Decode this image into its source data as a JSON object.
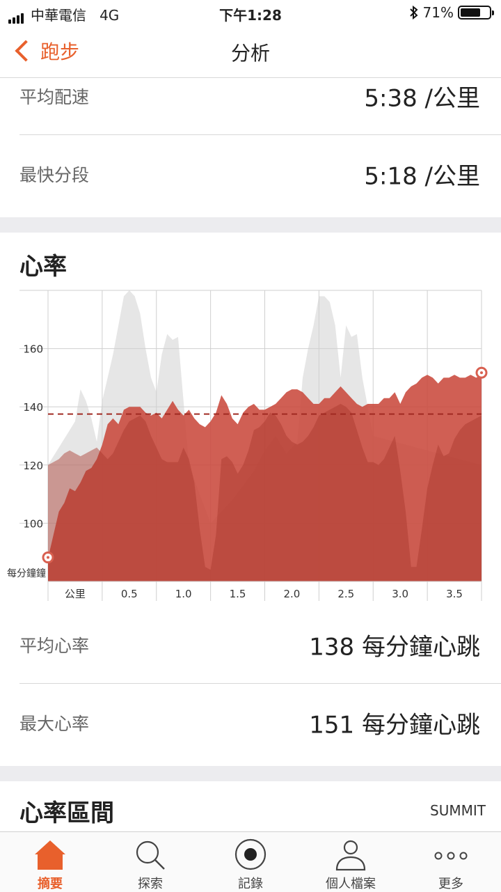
{
  "status_bar": {
    "carrier": "中華電信",
    "network": "4G",
    "time": "下午1:28",
    "battery_percent": "71%",
    "battery_level": 0.71
  },
  "nav": {
    "back_label": "跑步",
    "title": "分析"
  },
  "pace": {
    "rows": [
      {
        "label": "平均配速",
        "value": "5:38 /公里"
      },
      {
        "label": "最快分段",
        "value": "5:18 /公里"
      }
    ]
  },
  "heart_rate": {
    "title": "心率",
    "rows": [
      {
        "label": "平均心率",
        "value": "138 每分鐘心跳"
      },
      {
        "label": "最大心率",
        "value": "151 每分鐘心跳"
      }
    ]
  },
  "chart_data": {
    "type": "area",
    "x_unit_label": "公里",
    "pace_axis_label": "每分鐘",
    "x_ticks": [
      "0.5",
      "1.0",
      "1.5",
      "2.0",
      "2.5",
      "3.0",
      "3.5"
    ],
    "y_ticks": [
      100,
      120,
      140,
      160
    ],
    "xlim": [
      0,
      4.0
    ],
    "ylim": [
      80,
      180
    ],
    "average_line": 137.5,
    "colors": {
      "heart_rate": "#c9493c",
      "elevation": "#e6e6e6",
      "average_line": "#a02a22"
    },
    "series": [
      {
        "type": "heart_rate",
        "x": [
          0,
          0.05,
          0.1,
          0.15,
          0.2,
          0.25,
          0.3,
          0.35,
          0.4,
          0.45,
          0.5,
          0.55,
          0.6,
          0.65,
          0.7,
          0.75,
          0.8,
          0.85,
          0.9,
          0.95,
          1.0,
          1.05,
          1.1,
          1.15,
          1.2,
          1.25,
          1.3,
          1.35,
          1.4,
          1.45,
          1.5,
          1.55,
          1.6,
          1.65,
          1.7,
          1.75,
          1.8,
          1.85,
          1.9,
          1.95,
          2.0,
          2.05,
          2.1,
          2.15,
          2.2,
          2.25,
          2.3,
          2.35,
          2.4,
          2.45,
          2.5,
          2.55,
          2.6,
          2.65,
          2.7,
          2.75,
          2.8,
          2.85,
          2.9,
          2.95,
          3.0,
          3.05,
          3.1,
          3.15,
          3.2,
          3.25,
          3.3,
          3.35,
          3.4,
          3.45,
          3.5,
          3.55,
          3.6,
          3.65,
          3.7,
          3.75,
          3.8,
          3.85,
          3.9,
          3.95,
          4.0
        ],
        "y": [
          88,
          96,
          104,
          107,
          112,
          111,
          114,
          118,
          119,
          122,
          127,
          134,
          136,
          134,
          139,
          140,
          140,
          140,
          138,
          137,
          138,
          136,
          139,
          142,
          139,
          137,
          139,
          136,
          134,
          133,
          135,
          138,
          144,
          141,
          136,
          134,
          138,
          140,
          141,
          139,
          139,
          140,
          141,
          143,
          145,
          146,
          146,
          145,
          143,
          141,
          141,
          143,
          143,
          145,
          147,
          145,
          143,
          141,
          140,
          141,
          141,
          141,
          143,
          143,
          145,
          141,
          145,
          147,
          148,
          150,
          151,
          150,
          148,
          150,
          150,
          151,
          150,
          150,
          151,
          150,
          151
        ]
      },
      {
        "type": "pace",
        "x": [
          0,
          0.05,
          0.1,
          0.15,
          0.2,
          0.25,
          0.3,
          0.35,
          0.4,
          0.45,
          0.5,
          0.55,
          0.6,
          0.65,
          0.7,
          0.75,
          0.8,
          0.85,
          0.9,
          0.95,
          1.0,
          1.05,
          1.1,
          1.15,
          1.2,
          1.25,
          1.3,
          1.35,
          1.4,
          1.45,
          1.5,
          1.55,
          1.6,
          1.65,
          1.7,
          1.75,
          1.8,
          1.85,
          1.9,
          1.95,
          2.0,
          2.05,
          2.1,
          2.15,
          2.2,
          2.25,
          2.3,
          2.35,
          2.4,
          2.45,
          2.5,
          2.55,
          2.6,
          2.65,
          2.7,
          2.75,
          2.8,
          2.85,
          2.9,
          2.95,
          3.0,
          3.05,
          3.1,
          3.15,
          3.2,
          3.25,
          3.3,
          3.35,
          3.4,
          3.45,
          3.5,
          3.55,
          3.6,
          3.65,
          3.7,
          3.75,
          3.8,
          3.85,
          3.9,
          3.95,
          4.0
        ],
        "y": [
          120,
          121,
          122,
          124,
          125,
          124,
          123,
          124,
          125,
          126,
          124,
          122,
          124,
          128,
          132,
          135,
          136,
          137,
          135,
          130,
          126,
          122,
          121,
          121,
          121,
          126,
          122,
          114,
          98,
          85,
          84,
          96,
          122,
          123,
          121,
          117,
          120,
          125,
          132,
          133,
          135,
          138,
          137,
          134,
          130,
          128,
          127,
          128,
          130,
          133,
          137,
          138,
          139,
          140,
          141,
          140,
          138,
          132,
          126,
          121,
          121,
          120,
          122,
          126,
          130,
          118,
          104,
          85,
          85,
          98,
          112,
          120,
          127,
          123,
          124,
          129,
          132,
          134,
          135,
          136,
          137
        ]
      },
      {
        "type": "elevation",
        "x": [
          0,
          0.1,
          0.2,
          0.25,
          0.3,
          0.35,
          0.4,
          0.45,
          0.5,
          0.55,
          0.6,
          0.65,
          0.7,
          0.75,
          0.8,
          0.85,
          0.9,
          0.95,
          1.0,
          1.05,
          1.1,
          1.15,
          1.2,
          1.3,
          1.5,
          1.7,
          1.9,
          2.0,
          2.1,
          2.2,
          2.3,
          2.35,
          2.4,
          2.45,
          2.5,
          2.55,
          2.6,
          2.65,
          2.7,
          2.75,
          2.8,
          2.85,
          2.9,
          3.0,
          4.0
        ],
        "y": [
          120,
          126,
          132,
          135,
          146,
          142,
          136,
          128,
          142,
          150,
          158,
          168,
          178,
          180,
          178,
          172,
          160,
          150,
          145,
          158,
          165,
          163,
          164,
          120,
          100,
          108,
          118,
          125,
          130,
          124,
          128,
          150,
          160,
          168,
          178,
          178,
          176,
          168,
          150,
          168,
          164,
          165,
          150,
          130,
          120
        ]
      }
    ]
  },
  "zones": {
    "title": "心率區間",
    "badge": "SUMMIT"
  },
  "tab_bar": {
    "items": [
      {
        "label": "摘要",
        "icon": "home-icon",
        "active": true
      },
      {
        "label": "探索",
        "icon": "search-icon",
        "active": false
      },
      {
        "label": "記錄",
        "icon": "record-icon",
        "active": false
      },
      {
        "label": "個人檔案",
        "icon": "profile-icon",
        "active": false
      },
      {
        "label": "更多",
        "icon": "more-icon",
        "active": false
      }
    ]
  }
}
